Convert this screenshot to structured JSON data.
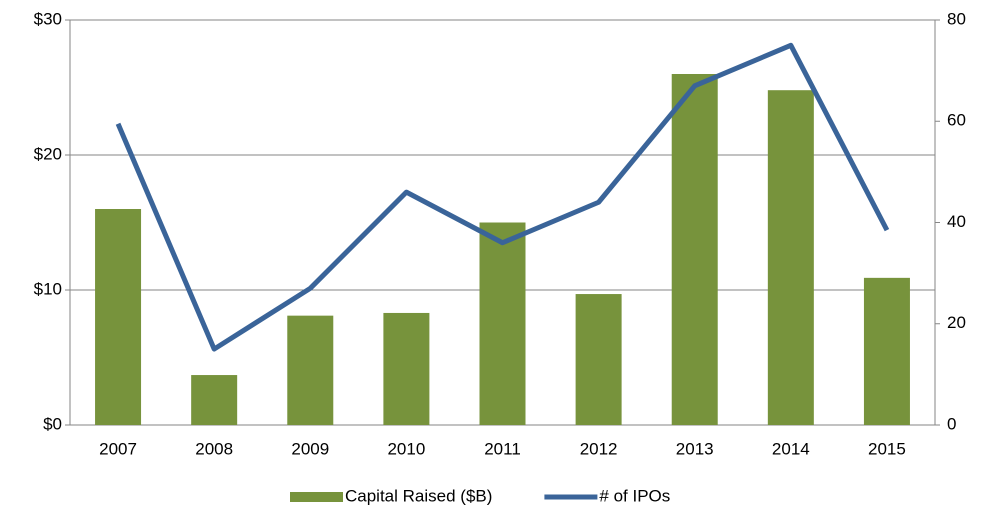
{
  "chart_data": {
    "type": "bar",
    "categories": [
      "2007",
      "2008",
      "2009",
      "2010",
      "2011",
      "2012",
      "2013",
      "2014",
      "2015"
    ],
    "series": [
      {
        "name": "Capital Raised ($B)",
        "color": "#77933c",
        "type": "bar",
        "values": [
          16.0,
          3.7,
          8.1,
          8.3,
          15.0,
          9.7,
          26.0,
          24.8,
          10.9
        ]
      },
      {
        "name": "# of IPOs",
        "color": "#3a6499",
        "type": "line",
        "axis": "y2",
        "values": [
          59.5,
          15,
          27,
          46,
          36,
          44,
          67,
          75,
          38.5
        ]
      }
    ],
    "ylim": [
      0,
      30
    ],
    "yticks": [
      {
        "value": 0,
        "label": "$0"
      },
      {
        "value": 10,
        "label": "$10"
      },
      {
        "value": 20,
        "label": "$20"
      },
      {
        "value": 30,
        "label": "$30"
      }
    ],
    "y2lim": [
      0,
      80
    ],
    "y2ticks": [
      0,
      20,
      40,
      60,
      80
    ],
    "grid": true,
    "legend": "bottom"
  }
}
